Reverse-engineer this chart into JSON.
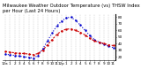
{
  "title": "Milwaukee Weather Outdoor Temperature (vs) THSW Index per Hour (Last 24 Hours)",
  "outdoor_temp": [
    28,
    27,
    26,
    25,
    25,
    24,
    23,
    25,
    30,
    38,
    46,
    54,
    59,
    62,
    62,
    60,
    57,
    53,
    48,
    44,
    42,
    40,
    38,
    37
  ],
  "thsw_index": [
    24,
    23,
    22,
    21,
    20,
    19,
    18,
    22,
    32,
    44,
    56,
    67,
    74,
    79,
    80,
    75,
    68,
    60,
    52,
    46,
    42,
    39,
    36,
    34
  ],
  "hours": [
    "12a",
    "1",
    "2",
    "3",
    "4",
    "5",
    "6",
    "7",
    "8",
    "9",
    "10",
    "11",
    "12p",
    "1",
    "2",
    "3",
    "4",
    "5",
    "6",
    "7",
    "8",
    "9",
    "10",
    "11"
  ],
  "temp_color": "#cc0000",
  "thsw_color": "#0000cc",
  "bg_color": "#ffffff",
  "grid_color": "#888888",
  "ylim": [
    15,
    85
  ],
  "yticks": [
    20,
    30,
    40,
    50,
    60,
    70,
    80
  ],
  "ytick_labels": [
    "20",
    "30",
    "40",
    "50",
    "60",
    "70",
    "80"
  ],
  "title_fontsize": 3.8,
  "tick_fontsize": 3.0
}
